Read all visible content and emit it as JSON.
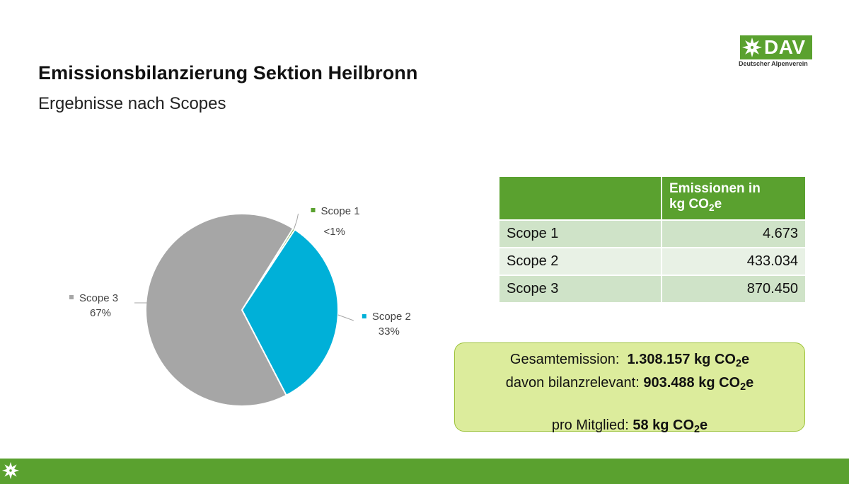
{
  "title": "Emissionsbilanzierung Sektion Heilbronn",
  "subtitle": "Ergebnisse nach Scopes",
  "logo": {
    "word": "DAV",
    "tagline": "Deutscher Alpenverein",
    "icon": "edelweiss-icon"
  },
  "colors": {
    "brand_green": "#5aa12f",
    "scope1": "#5aa12f",
    "scope2": "#00b0d8",
    "scope3": "#a6a6a6",
    "summary_bg": "#dcec9c"
  },
  "chart_data": {
    "type": "pie",
    "categories": [
      "Scope 1",
      "Scope 2",
      "Scope 3"
    ],
    "values": [
      4673,
      433034,
      870450
    ],
    "percent_labels": [
      "<1%",
      "33%",
      "67%"
    ],
    "colors": [
      "#5aa12f",
      "#00b0d8",
      "#a6a6a6"
    ],
    "legend": "none"
  },
  "table": {
    "header": {
      "col1": "",
      "col2_line1": "Emissionen in",
      "col2_unit_prefix": "kg CO",
      "col2_unit_sub": "2",
      "col2_unit_suffix": "e"
    },
    "rows": [
      {
        "label": "Scope 1",
        "value": "4.673"
      },
      {
        "label": "Scope 2",
        "value": "433.034"
      },
      {
        "label": "Scope 3",
        "value": "870.450"
      }
    ]
  },
  "summary": {
    "line1_label": "Gesamtemission:",
    "line1_value": "1.308.157 kg CO",
    "line2_label": "davon bilanzrelevant:",
    "line2_value": "903.488 kg CO",
    "line3_label": "pro Mitglied:",
    "line3_value": "58 kg CO",
    "unit_sub": "2",
    "unit_suffix": "e"
  }
}
